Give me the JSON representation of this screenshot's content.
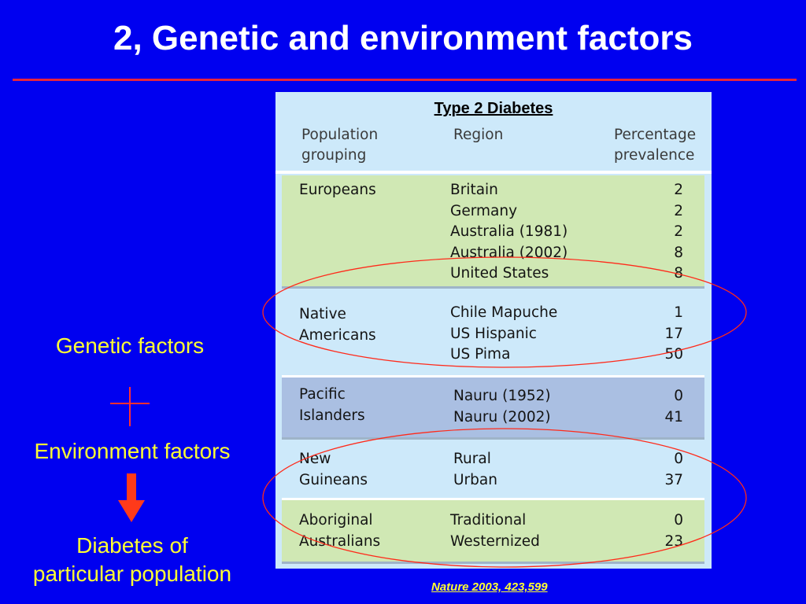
{
  "title": "2, Genetic and environment factors",
  "left": {
    "genetic": "Genetic factors",
    "environment": "Environment factors",
    "diabetes_line1": "Diabetes of",
    "diabetes_line2": "particular population",
    "plus_icon": "plus-icon",
    "arrow_icon": "arrow-down-icon"
  },
  "table": {
    "title": "Type 2 Diabetes",
    "headers": {
      "population_line1": "Population",
      "population_line2": "grouping",
      "region": "Region",
      "percentage_line1": "Percentage",
      "percentage_line2": "prevalence"
    },
    "groups": [
      {
        "population": [
          "Europeans"
        ],
        "regions": [
          "Britain",
          "Germany",
          "Australia (1981)",
          "Australia (2002)",
          "United States"
        ],
        "values": [
          "2",
          "2",
          "2",
          "8",
          "8"
        ],
        "color": "#d0e8b4"
      },
      {
        "population": [
          "Native",
          "Americans"
        ],
        "regions": [
          "Chile Mapuche",
          "US Hispanic",
          "US Pima"
        ],
        "values": [
          "1",
          "17",
          "50"
        ],
        "color": "#cde9fa"
      },
      {
        "population": [
          "Pacific",
          "Islanders"
        ],
        "regions": [
          "Nauru (1952)",
          "Nauru (2002)"
        ],
        "values": [
          "0",
          "41"
        ],
        "color": "#aabfe2"
      },
      {
        "population": [
          "New",
          "Guineans"
        ],
        "regions": [
          "Rural",
          "Urban"
        ],
        "values": [
          "0",
          "37"
        ],
        "color": "#cde9fa"
      },
      {
        "population": [
          "Aboriginal",
          "Australians"
        ],
        "regions": [
          "Traditional",
          "Westernized"
        ],
        "values": [
          "0",
          "23"
        ],
        "color": "#d0e8b4"
      }
    ]
  },
  "citation": "Nature 2003, 423,599",
  "colors": {
    "background": "#0000f0",
    "title_text": "#ffffff",
    "rule": "#e8243c",
    "accent_text": "#ffff33",
    "highlight_ellipse": "#ff2a1a"
  }
}
